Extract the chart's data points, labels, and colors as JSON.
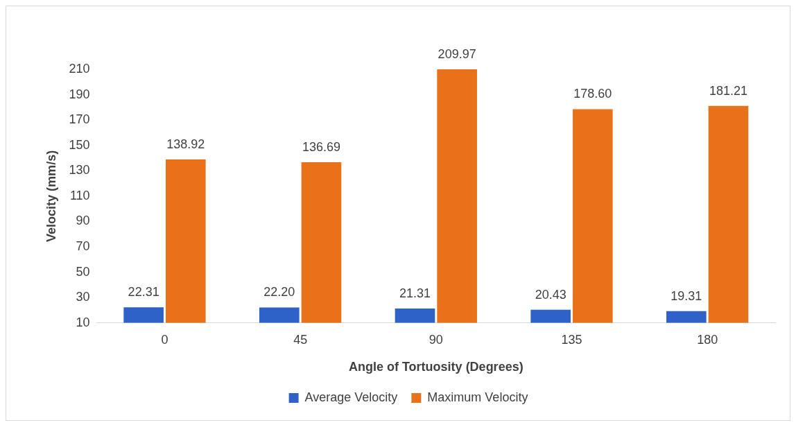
{
  "chart_data": {
    "type": "bar",
    "xlabel": "Angle of Tortuosity (Degrees)",
    "ylabel": "Velocity (mm/s)",
    "categories": [
      "0",
      "45",
      "90",
      "135",
      "180"
    ],
    "series": [
      {
        "name": "Average Velocity",
        "color": "#2f62c9",
        "values": [
          22.31,
          22.2,
          21.31,
          20.43,
          19.31
        ],
        "value_labels": [
          "22.31",
          "22.20",
          "21.31",
          "20.43",
          "19.31"
        ]
      },
      {
        "name": "Maximum Velocity",
        "color": "#e8711a",
        "values": [
          138.92,
          136.69,
          209.97,
          178.6,
          181.21
        ],
        "value_labels": [
          "138.92",
          "136.69",
          "209.97",
          "178.60",
          "181.21"
        ]
      }
    ],
    "ylim": [
      10,
      210
    ],
    "yticks": [
      10,
      30,
      50,
      70,
      90,
      110,
      130,
      150,
      170,
      190,
      210
    ],
    "grid": false,
    "legend": "bottom"
  }
}
